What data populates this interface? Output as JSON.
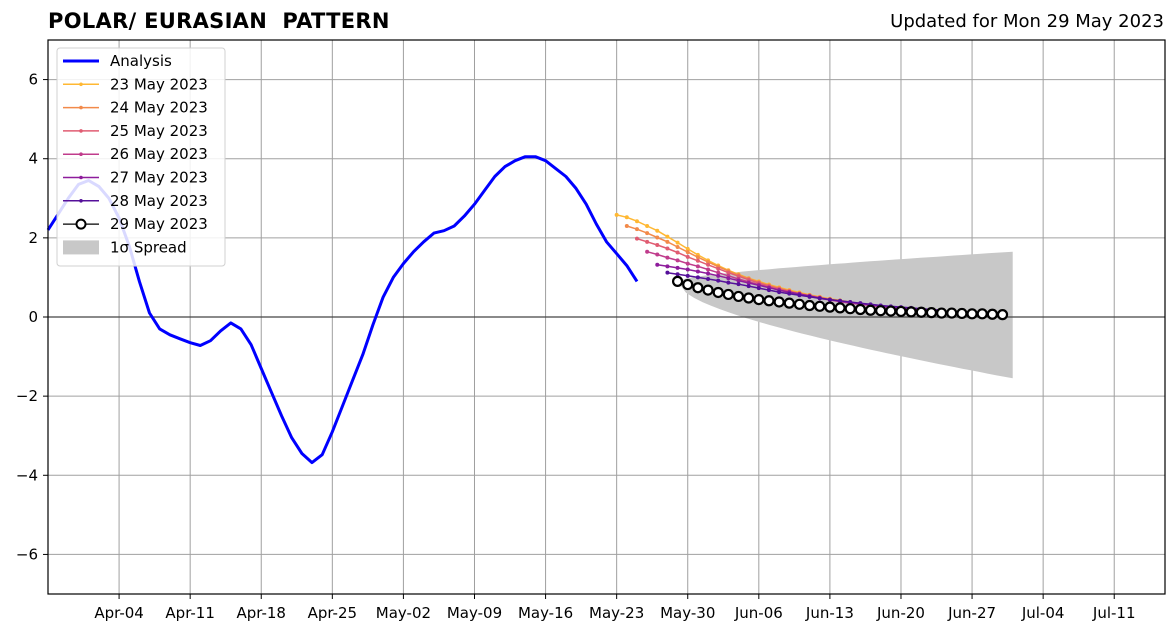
{
  "header": {
    "title": "POLAR/ EURASIAN  PATTERN",
    "updated": "Updated for Mon 29 May 2023"
  },
  "chart_data": {
    "type": "line",
    "title": "POLAR/ EURASIAN  PATTERN",
    "xlabel": "",
    "ylabel": "",
    "x_start": "2023-03-28",
    "xlim": [
      "2023-03-28",
      "2023-07-16"
    ],
    "ylim": [
      -7,
      7
    ],
    "grid": true,
    "legend_position": "top-left",
    "x_ticks": [
      "Apr-04",
      "Apr-11",
      "Apr-18",
      "Apr-25",
      "May-02",
      "May-09",
      "May-16",
      "May-23",
      "May-30",
      "Jun-06",
      "Jun-13",
      "Jun-20",
      "Jun-27",
      "Jul-04",
      "Jul-11"
    ],
    "y_ticks": [
      6,
      4,
      2,
      0,
      -2,
      -4,
      -6
    ],
    "y_tick_labels": [
      "6",
      "4",
      "2",
      "0",
      "−2",
      "−4",
      "−6"
    ],
    "analysis": {
      "name": "Analysis",
      "color": "#0000ff",
      "x": [
        "2023-03-28",
        "2023-03-29",
        "2023-03-30",
        "2023-03-31",
        "2023-04-01",
        "2023-04-02",
        "2023-04-03",
        "2023-04-04",
        "2023-04-05",
        "2023-04-06",
        "2023-04-07",
        "2023-04-08",
        "2023-04-09",
        "2023-04-10",
        "2023-04-11",
        "2023-04-12",
        "2023-04-13",
        "2023-04-14",
        "2023-04-15",
        "2023-04-16",
        "2023-04-17",
        "2023-04-18",
        "2023-04-19",
        "2023-04-20",
        "2023-04-21",
        "2023-04-22",
        "2023-04-23",
        "2023-04-24",
        "2023-04-25",
        "2023-04-26",
        "2023-04-27",
        "2023-04-28",
        "2023-04-29",
        "2023-04-30",
        "2023-05-01",
        "2023-05-02",
        "2023-05-03",
        "2023-05-04",
        "2023-05-05",
        "2023-05-06",
        "2023-05-07",
        "2023-05-08",
        "2023-05-09",
        "2023-05-10",
        "2023-05-11",
        "2023-05-12",
        "2023-05-13",
        "2023-05-14",
        "2023-05-15",
        "2023-05-16",
        "2023-05-17",
        "2023-05-18",
        "2023-05-19",
        "2023-05-20",
        "2023-05-21",
        "2023-05-22",
        "2023-05-23",
        "2023-05-24",
        "2023-05-25",
        "2023-05-26",
        "2023-05-27",
        "2023-05-28",
        "2023-05-29"
      ],
      "y": [
        2.2,
        2.6,
        3.0,
        3.35,
        3.45,
        3.3,
        3.0,
        2.5,
        1.8,
        0.9,
        0.1,
        -0.3,
        -0.45,
        -0.55,
        -0.65,
        -0.72,
        -0.6,
        -0.35,
        -0.15,
        -0.3,
        -0.7,
        -1.3,
        -1.9,
        -2.5,
        -3.05,
        -3.45,
        -3.68,
        -3.48,
        -2.9,
        -2.25,
        -1.6,
        -0.95,
        -0.2,
        0.5,
        1.0,
        1.35,
        1.65,
        1.9,
        2.12,
        2.18,
        2.3,
        2.55,
        2.85,
        3.2,
        3.55,
        3.8,
        3.95,
        4.05,
        4.05,
        3.95,
        3.75,
        3.55,
        3.25,
        2.85,
        2.35,
        1.9,
        1.6,
        1.3,
        0.9,
        null,
        null,
        null,
        null
      ]
    },
    "forecasts": [
      {
        "name": "23 May 2023",
        "color": "#ffb833",
        "start": "2023-05-23",
        "y": [
          2.58,
          2.52,
          2.42,
          2.3,
          2.18,
          2.03,
          1.88,
          1.72,
          1.57,
          1.43,
          1.3,
          1.18,
          1.08,
          0.98,
          0.9,
          0.82,
          0.75,
          0.68,
          0.62,
          0.56,
          0.51,
          0.46,
          0.42,
          0.38,
          0.34,
          0.31,
          0.28,
          0.25,
          0.22,
          0.2,
          0.18,
          0.16,
          0.14
        ]
      },
      {
        "name": "24 May 2023",
        "color": "#f28a4a",
        "start": "2023-05-24",
        "y": [
          2.3,
          2.22,
          2.12,
          2.01,
          1.9,
          1.77,
          1.64,
          1.51,
          1.39,
          1.27,
          1.16,
          1.06,
          0.97,
          0.88,
          0.8,
          0.73,
          0.66,
          0.6,
          0.55,
          0.5,
          0.45,
          0.41,
          0.37,
          0.33,
          0.3,
          0.27,
          0.24,
          0.22,
          0.2,
          0.18,
          0.16,
          0.14
        ]
      },
      {
        "name": "25 May 2023",
        "color": "#e05c72",
        "start": "2023-05-25",
        "y": [
          1.98,
          1.9,
          1.82,
          1.73,
          1.63,
          1.52,
          1.42,
          1.32,
          1.22,
          1.12,
          1.03,
          0.94,
          0.86,
          0.78,
          0.71,
          0.65,
          0.59,
          0.54,
          0.49,
          0.44,
          0.4,
          0.36,
          0.33,
          0.3,
          0.27,
          0.24,
          0.22,
          0.2,
          0.18,
          0.16,
          0.14
        ]
      },
      {
        "name": "26 May 2023",
        "color": "#c03c8c",
        "start": "2023-05-26",
        "y": [
          1.65,
          1.58,
          1.5,
          1.43,
          1.35,
          1.28,
          1.2,
          1.12,
          1.04,
          0.96,
          0.89,
          0.82,
          0.75,
          0.68,
          0.62,
          0.57,
          0.52,
          0.47,
          0.43,
          0.39,
          0.35,
          0.32,
          0.29,
          0.26,
          0.24,
          0.21,
          0.19,
          0.17,
          0.15,
          0.14
        ]
      },
      {
        "name": "27 May 2023",
        "color": "#8e1c9c",
        "start": "2023-05-27",
        "y": [
          1.32,
          1.28,
          1.24,
          1.2,
          1.15,
          1.1,
          1.04,
          0.98,
          0.92,
          0.86,
          0.8,
          0.74,
          0.68,
          0.63,
          0.58,
          0.53,
          0.48,
          0.44,
          0.4,
          0.37,
          0.34,
          0.31,
          0.28,
          0.25,
          0.23,
          0.21,
          0.19,
          0.17,
          0.15
        ]
      },
      {
        "name": "28 May 2023",
        "color": "#55109a",
        "start": "2023-05-28",
        "y": [
          1.12,
          1.08,
          1.04,
          1.0,
          0.96,
          0.92,
          0.87,
          0.83,
          0.78,
          0.73,
          0.68,
          0.63,
          0.59,
          0.55,
          0.51,
          0.47,
          0.44,
          0.41,
          0.38,
          0.35,
          0.32,
          0.29,
          0.27,
          0.25,
          0.23,
          0.21,
          0.19,
          0.17
        ]
      },
      {
        "name": "29 May 2023",
        "color": "#000000",
        "start": "2023-05-29",
        "marker": "open-circle",
        "y": [
          0.9,
          0.82,
          0.74,
          0.68,
          0.62,
          0.57,
          0.52,
          0.48,
          0.44,
          0.41,
          0.38,
          0.35,
          0.32,
          0.29,
          0.27,
          0.25,
          0.23,
          0.21,
          0.19,
          0.17,
          0.16,
          0.15,
          0.14,
          0.13,
          0.12,
          0.11,
          0.1,
          0.1,
          0.09,
          0.08,
          0.08,
          0.07,
          0.06
        ]
      }
    ],
    "spread": {
      "name": "1σ Spread",
      "color": "#c8c8c8",
      "start": "2023-05-29",
      "end": "2023-07-01",
      "upper_start": 0.9,
      "upper_end": 1.65,
      "lower_start": 0.9,
      "lower_end": -1.55
    },
    "zero_line": 0
  }
}
